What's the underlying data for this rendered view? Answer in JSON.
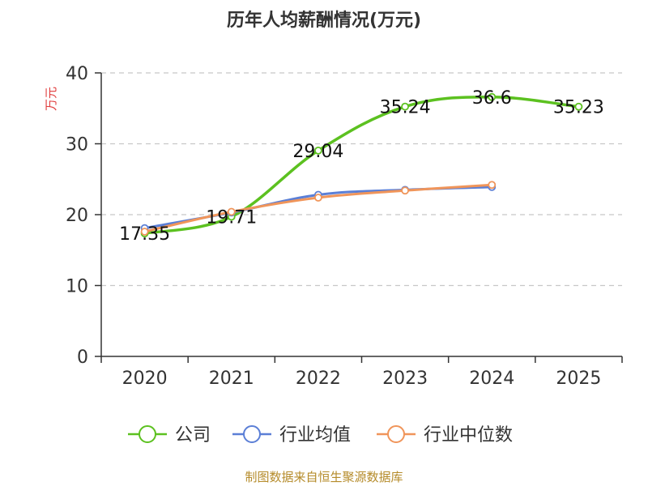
{
  "chart_data": {
    "type": "line",
    "title": "历年人均薪酬情况(万元)",
    "ylabel": "万元",
    "xlabel": "",
    "categories": [
      "2020",
      "2021",
      "2022",
      "2023",
      "2024",
      "2025"
    ],
    "ylim": [
      0,
      40
    ],
    "yticks": [
      0,
      10,
      20,
      30,
      40
    ],
    "grid": true,
    "legend_position": "bottom",
    "series": [
      {
        "name": "公司",
        "color": "#5cc120",
        "values": [
          17.35,
          19.71,
          29.04,
          35.24,
          36.6,
          35.23
        ],
        "labels": [
          "17.35",
          "19.71",
          "29.04",
          "35.24",
          "36.6",
          "35.23"
        ]
      },
      {
        "name": "行业均值",
        "color": "#5b7fd6",
        "values": [
          18.1,
          20.3,
          22.8,
          23.5,
          23.9,
          null
        ]
      },
      {
        "name": "行业中位数",
        "color": "#f0955a",
        "values": [
          17.6,
          20.4,
          22.4,
          23.4,
          24.2,
          null
        ]
      }
    ]
  },
  "footer": {
    "source": "制图数据来自恒生聚源数据库"
  }
}
